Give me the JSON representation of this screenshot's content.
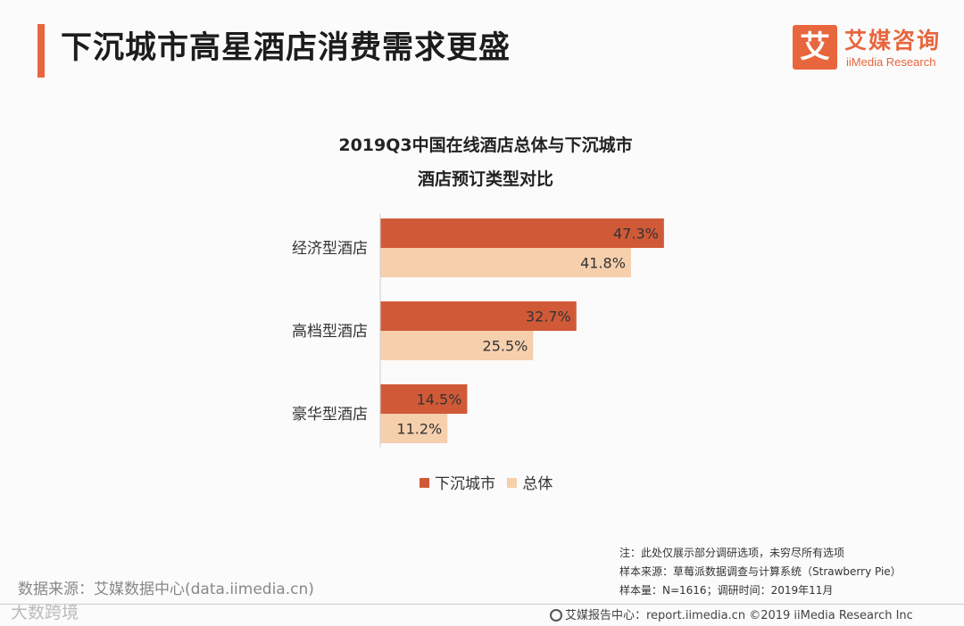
{
  "header": {
    "title": "下沉城市高星酒店消费需求更盛"
  },
  "logo": {
    "mark": "艾",
    "cn": "艾媒咨询",
    "en": "iiMedia Research"
  },
  "colors": {
    "accent": "#e8663d",
    "series1": "#d05a38",
    "series2": "#f6cfad"
  },
  "chart_data": {
    "type": "bar",
    "orientation": "horizontal",
    "title_line1": "2019Q3中国在线酒店总体与下沉城市",
    "title_line2": "酒店预订类型对比",
    "categories": [
      "经济型酒店",
      "高档型酒店",
      "豪华型酒店"
    ],
    "series": [
      {
        "name": "下沉城市",
        "values": [
          47.3,
          32.7,
          14.5
        ],
        "labels": [
          "47.3%",
          "32.7%",
          "14.5%"
        ]
      },
      {
        "name": "总体",
        "values": [
          41.8,
          25.5,
          11.2
        ],
        "labels": [
          "41.8%",
          "25.5%",
          "11.2%"
        ]
      }
    ],
    "xlim": [
      0,
      50
    ],
    "legend_position": "bottom",
    "grid": false
  },
  "legend": {
    "items": [
      "下沉城市",
      "总体"
    ]
  },
  "notes": {
    "line1": "注：此处仅展示部分调研选项，未穷尽所有选项",
    "line2": "样本来源：草莓派数据调查与计算系统（Strawberry Pie）",
    "line3": "样本量：N=1616；调研时间：2019年11月"
  },
  "source": "数据来源：艾媒数据中心(data.iimedia.cn)",
  "watermark": "大数跨境",
  "footer": "艾媒报告中心：report.iimedia.cn  ©2019  iiMedia Research  Inc"
}
